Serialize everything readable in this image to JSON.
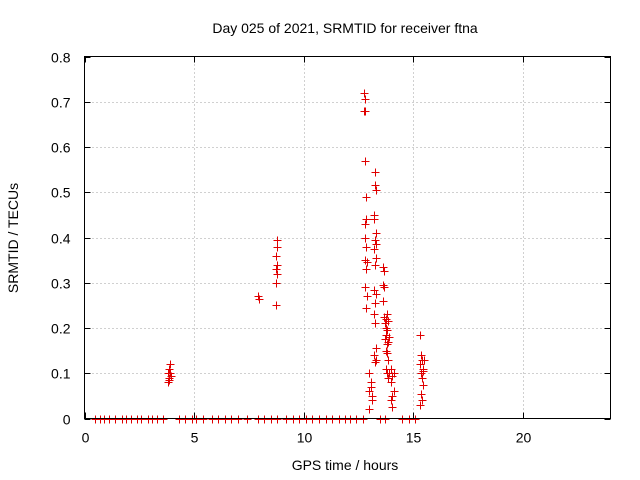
{
  "chart_data": {
    "type": "scatter",
    "title": "Day 025 of 2021, SRMTID for receiver ftna",
    "xlabel": "GPS time / hours",
    "ylabel": "SRMTID / TECUs",
    "xlim": [
      0,
      24
    ],
    "ylim": [
      0,
      0.8
    ],
    "xticks": [
      0,
      5,
      10,
      15,
      20
    ],
    "yticks": [
      0,
      0.1,
      0.2,
      0.3,
      0.4,
      0.5,
      0.6,
      0.7,
      0.8
    ],
    "xtick_labels": [
      "0",
      "5",
      "10",
      "15",
      "20"
    ],
    "ytick_labels": [
      "0",
      "0.1",
      "0.2",
      "0.3",
      "0.4",
      "0.5",
      "0.6",
      "0.7",
      "0.8"
    ],
    "grid": true,
    "marker": "+",
    "color": "#e00000",
    "series": [
      {
        "name": "SRMTID",
        "points": [
          [
            0.5,
            0
          ],
          [
            0.7,
            0
          ],
          [
            0.9,
            0
          ],
          [
            1.1,
            0
          ],
          [
            1.4,
            0
          ],
          [
            1.7,
            0
          ],
          [
            1.9,
            0
          ],
          [
            2.1,
            0
          ],
          [
            2.4,
            0
          ],
          [
            2.6,
            0
          ],
          [
            2.9,
            0
          ],
          [
            3.1,
            0
          ],
          [
            3.3,
            0
          ],
          [
            3.6,
            0
          ],
          [
            4.3,
            0
          ],
          [
            4.6,
            0
          ],
          [
            4.9,
            0
          ],
          [
            5.1,
            0
          ],
          [
            5.4,
            0
          ],
          [
            5.8,
            0
          ],
          [
            6.1,
            0
          ],
          [
            6.4,
            0
          ],
          [
            6.7,
            0
          ],
          [
            7.0,
            0
          ],
          [
            7.4,
            0
          ],
          [
            7.9,
            0
          ],
          [
            8.2,
            0
          ],
          [
            8.5,
            0
          ],
          [
            8.8,
            0
          ],
          [
            9.2,
            0
          ],
          [
            9.5,
            0
          ],
          [
            9.8,
            0
          ],
          [
            10.1,
            0
          ],
          [
            10.4,
            0
          ],
          [
            10.7,
            0
          ],
          [
            11.0,
            0
          ],
          [
            11.3,
            0
          ],
          [
            11.6,
            0
          ],
          [
            11.9,
            0
          ],
          [
            12.1,
            0
          ],
          [
            12.4,
            0
          ],
          [
            12.7,
            0
          ],
          [
            13.5,
            0
          ],
          [
            13.7,
            0
          ],
          [
            14.5,
            0
          ],
          [
            14.8,
            0
          ],
          [
            15.1,
            0
          ],
          [
            3.8,
            0.08
          ],
          [
            3.85,
            0.09
          ],
          [
            3.9,
            0.1
          ],
          [
            3.85,
            0.11
          ],
          [
            3.9,
            0.12
          ],
          [
            3.8,
            0.1
          ],
          [
            3.95,
            0.095
          ],
          [
            3.85,
            0.085
          ],
          [
            7.9,
            0.27
          ],
          [
            7.95,
            0.265
          ],
          [
            8.75,
            0.25
          ],
          [
            8.75,
            0.3
          ],
          [
            8.8,
            0.32
          ],
          [
            8.8,
            0.34
          ],
          [
            8.75,
            0.36
          ],
          [
            8.8,
            0.38
          ],
          [
            8.8,
            0.395
          ],
          [
            8.75,
            0.33
          ],
          [
            12.75,
            0.72
          ],
          [
            12.8,
            0.705
          ],
          [
            12.75,
            0.68
          ],
          [
            12.8,
            0.68
          ],
          [
            12.8,
            0.57
          ],
          [
            12.85,
            0.49
          ],
          [
            12.85,
            0.44
          ],
          [
            12.8,
            0.43
          ],
          [
            12.8,
            0.4
          ],
          [
            12.85,
            0.38
          ],
          [
            12.8,
            0.35
          ],
          [
            12.9,
            0.345
          ],
          [
            12.85,
            0.33
          ],
          [
            12.8,
            0.29
          ],
          [
            12.9,
            0.27
          ],
          [
            12.85,
            0.245
          ],
          [
            13.0,
            0.1
          ],
          [
            13.05,
            0.08
          ],
          [
            13.0,
            0.06
          ],
          [
            13.1,
            0.04
          ],
          [
            13.0,
            0.02
          ],
          [
            13.05,
            0.07
          ],
          [
            13.1,
            0.05
          ],
          [
            13.25,
            0.545
          ],
          [
            13.25,
            0.515
          ],
          [
            13.3,
            0.505
          ],
          [
            13.2,
            0.45
          ],
          [
            13.2,
            0.44
          ],
          [
            13.3,
            0.41
          ],
          [
            13.25,
            0.395
          ],
          [
            13.3,
            0.385
          ],
          [
            13.2,
            0.375
          ],
          [
            13.3,
            0.355
          ],
          [
            13.25,
            0.34
          ],
          [
            13.2,
            0.285
          ],
          [
            13.3,
            0.275
          ],
          [
            13.25,
            0.255
          ],
          [
            13.2,
            0.23
          ],
          [
            13.25,
            0.21
          ],
          [
            13.3,
            0.155
          ],
          [
            13.2,
            0.14
          ],
          [
            13.25,
            0.125
          ],
          [
            13.3,
            0.13
          ],
          [
            13.6,
            0.335
          ],
          [
            13.65,
            0.325
          ],
          [
            13.6,
            0.295
          ],
          [
            13.65,
            0.29
          ],
          [
            13.6,
            0.26
          ],
          [
            13.65,
            0.225
          ],
          [
            13.75,
            0.22
          ],
          [
            13.7,
            0.21
          ],
          [
            13.8,
            0.195
          ],
          [
            13.75,
            0.185
          ],
          [
            13.7,
            0.175
          ],
          [
            13.8,
            0.165
          ],
          [
            13.85,
            0.17
          ],
          [
            13.75,
            0.15
          ],
          [
            13.8,
            0.145
          ],
          [
            13.85,
            0.13
          ],
          [
            13.75,
            0.11
          ],
          [
            13.8,
            0.1
          ],
          [
            13.9,
            0.1
          ],
          [
            13.85,
            0.09
          ],
          [
            13.75,
            0.2
          ],
          [
            13.9,
            0.18
          ],
          [
            13.8,
            0.23
          ],
          [
            13.85,
            0.215
          ],
          [
            14.0,
            0.11
          ],
          [
            14.05,
            0.095
          ],
          [
            14.0,
            0.08
          ],
          [
            14.1,
            0.06
          ],
          [
            14.05,
            0.05
          ],
          [
            14.0,
            0.04
          ],
          [
            14.05,
            0.025
          ],
          [
            14.1,
            0.1
          ],
          [
            15.3,
            0.185
          ],
          [
            15.35,
            0.14
          ],
          [
            15.4,
            0.13
          ],
          [
            15.3,
            0.12
          ],
          [
            15.45,
            0.11
          ],
          [
            15.35,
            0.1
          ],
          [
            15.4,
            0.09
          ],
          [
            15.45,
            0.075
          ],
          [
            15.35,
            0.055
          ],
          [
            15.4,
            0.04
          ],
          [
            15.3,
            0.03
          ],
          [
            15.45,
            0.105
          ],
          [
            15.5,
            0.13
          ]
        ]
      }
    ]
  }
}
